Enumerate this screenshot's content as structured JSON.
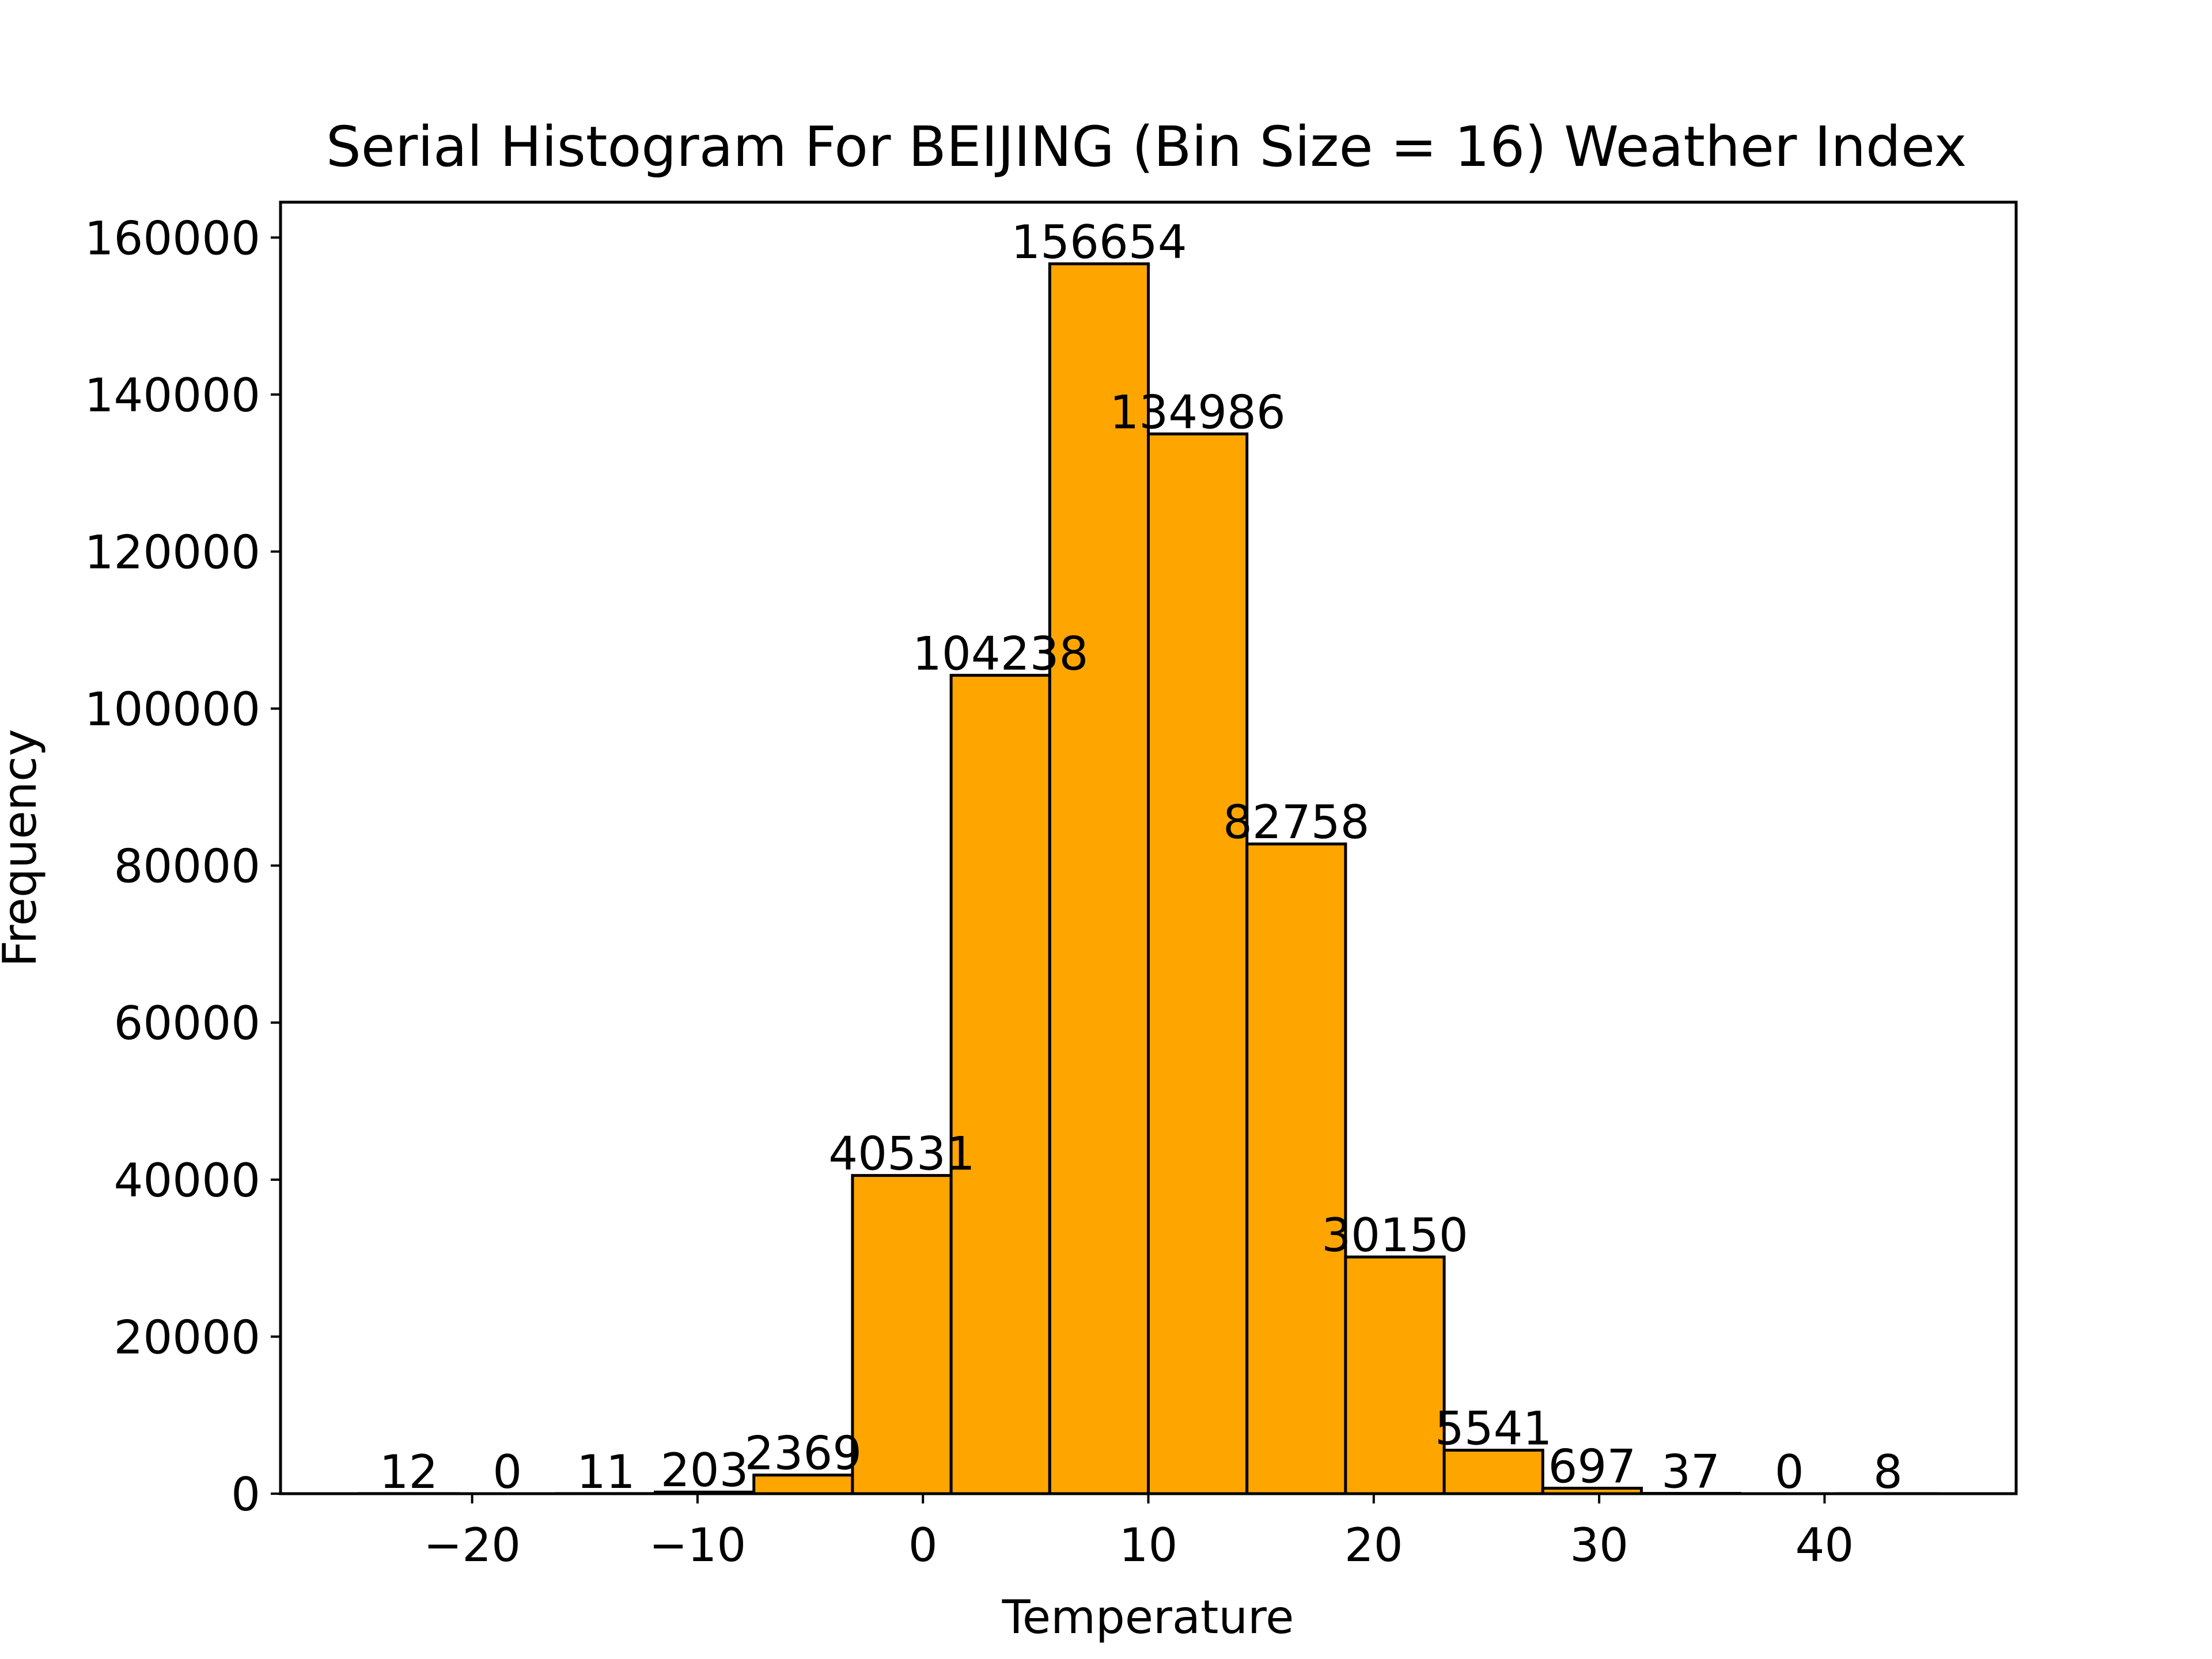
{
  "chart_data": {
    "type": "bar",
    "title": "Serial Histogram For BEIJING (Bin Size = 16) Weather Index",
    "xlabel": "Temperature",
    "ylabel": "Frequency",
    "bin_edges": [
      -25.0,
      -20.625,
      -16.25,
      -11.875,
      -7.5,
      -3.125,
      1.25,
      5.625,
      10.0,
      14.375,
      18.75,
      23.125,
      27.5,
      31.875,
      36.25,
      40.625,
      45.0
    ],
    "values": [
      12,
      0,
      11,
      203,
      2369,
      40531,
      104238,
      156654,
      134986,
      82758,
      30150,
      5541,
      697,
      37,
      0,
      8
    ],
    "value_labels": [
      "12",
      "0",
      "11",
      "203",
      "2369",
      "40531",
      "104238",
      "156654",
      "134986",
      "82758",
      "30150",
      "5541",
      "697",
      "37",
      "0",
      "8"
    ],
    "xlim": [
      -28.5,
      48.5
    ],
    "ylim": [
      0,
      164500
    ],
    "xticks": [
      -20,
      -10,
      0,
      10,
      20,
      30,
      40
    ],
    "xtick_labels": [
      "−20",
      "−10",
      "0",
      "10",
      "20",
      "30",
      "40"
    ],
    "yticks": [
      0,
      20000,
      40000,
      60000,
      80000,
      100000,
      120000,
      140000,
      160000
    ],
    "ytick_labels": [
      "0",
      "20000",
      "40000",
      "60000",
      "80000",
      "100000",
      "120000",
      "140000",
      "160000"
    ],
    "bar_color": "#FFA500",
    "edge_color": "#000000",
    "grid": false
  }
}
